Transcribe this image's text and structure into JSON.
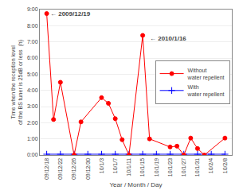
{
  "chart_data": {
    "type": "line",
    "x_label": "Year / Month / Day",
    "y_label": "Time when the reception level\nof the BS tuner is 25dB or less  (h)",
    "series": [
      {
        "name": "Without\nwater repellent",
        "color": "#ff0000",
        "marker": "circle",
        "x": [
          0,
          0.5,
          1.0,
          2.0,
          2.5,
          4.0,
          4.5,
          5.0,
          5.5,
          6.0,
          7.0,
          7.5,
          9.0,
          9.5,
          10.0,
          10.5,
          11.0,
          11.5,
          13.0
        ],
        "values": [
          8.75,
          2.2,
          4.5,
          0.0,
          2.05,
          3.55,
          3.2,
          2.25,
          0.95,
          0.0,
          7.4,
          1.0,
          0.5,
          0.55,
          0.0,
          1.05,
          0.4,
          0.0,
          1.05
        ]
      },
      {
        "name": "With\nwater repellent",
        "color": "#0000ff",
        "marker": "plus",
        "x": [
          0,
          1,
          2,
          3,
          4,
          5,
          6,
          7,
          8,
          9,
          10,
          11,
          12,
          13
        ],
        "values": [
          0.05,
          0.05,
          0.05,
          0.05,
          0.05,
          0.05,
          0.05,
          0.05,
          0.05,
          0.05,
          0.05,
          0.05,
          0.05,
          0.05
        ]
      }
    ],
    "annotations": [
      {
        "text": "← 2009/12/19",
        "x": 0.15,
        "y": 8.75
      },
      {
        "text": "← 2010/1/16",
        "x": 7.4,
        "y": 7.2
      }
    ],
    "xlim": [
      -0.5,
      13.5
    ],
    "xticks": [
      {
        "value": 0,
        "label": "09/12/18"
      },
      {
        "value": 1,
        "label": "09/12/22"
      },
      {
        "value": 2,
        "label": "09/12/26"
      },
      {
        "value": 3,
        "label": "09/12/30"
      },
      {
        "value": 4,
        "label": "10/1/3"
      },
      {
        "value": 5,
        "label": "10/1/7"
      },
      {
        "value": 6,
        "label": "10/1/11"
      },
      {
        "value": 7,
        "label": "10/1/15"
      },
      {
        "value": 8,
        "label": "10/1/19"
      },
      {
        "value": 9,
        "label": "10/1/23"
      },
      {
        "value": 10,
        "label": "10/1/27"
      },
      {
        "value": 11,
        "label": "10/1/31"
      },
      {
        "value": 12,
        "label": "10/2/4"
      },
      {
        "value": 13,
        "label": "10/2/8"
      }
    ],
    "ylim": [
      0,
      9
    ],
    "yticks": [
      {
        "value": 0,
        "label": "0:00"
      },
      {
        "value": 1,
        "label": "1:00"
      },
      {
        "value": 2,
        "label": "2:00"
      },
      {
        "value": 3,
        "label": "3:00"
      },
      {
        "value": 4,
        "label": "4:00"
      },
      {
        "value": 5,
        "label": "5:00"
      },
      {
        "value": 6,
        "label": "6:00"
      },
      {
        "value": 7,
        "label": "7:00"
      },
      {
        "value": 8,
        "label": "8:00"
      },
      {
        "value": 9,
        "label": "9:00"
      }
    ],
    "grid": "y",
    "legend": "center right"
  }
}
